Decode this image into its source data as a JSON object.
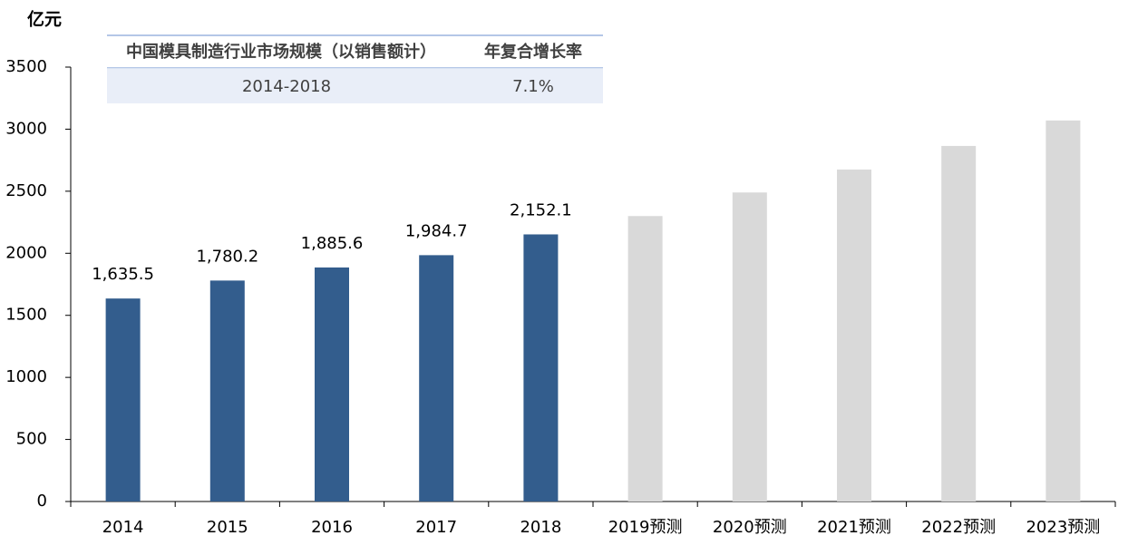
{
  "chart_data": {
    "type": "bar",
    "y_label": "亿元",
    "categories": [
      "2014",
      "2015",
      "2016",
      "2017",
      "2018",
      "2019预测",
      "2020预测",
      "2021预测",
      "2022预测",
      "2023预测"
    ],
    "values": [
      1635.5,
      1780.2,
      1885.6,
      1984.7,
      2152.1,
      2300,
      2490,
      2675,
      2865,
      3070
    ],
    "value_labels": [
      "1,635.5",
      "1,780.2",
      "1,885.6",
      "1,984.7",
      "2,152.1",
      null,
      null,
      null,
      null,
      null
    ],
    "colors": [
      "#335d8d",
      "#335d8d",
      "#335d8d",
      "#335d8d",
      "#335d8d",
      "#d9d9d9",
      "#d9d9d9",
      "#d9d9d9",
      "#d9d9d9",
      "#d9d9d9"
    ],
    "ylim": [
      0,
      3500
    ],
    "yticks": [
      0,
      500,
      1000,
      1500,
      2000,
      2500,
      3000,
      3500
    ],
    "grid": false,
    "table": {
      "header": [
        "中国模具制造行业市场规模（以销售额计）",
        "年复合增长率"
      ],
      "rows": [
        [
          "2014-2018",
          "7.1%"
        ]
      ]
    }
  }
}
